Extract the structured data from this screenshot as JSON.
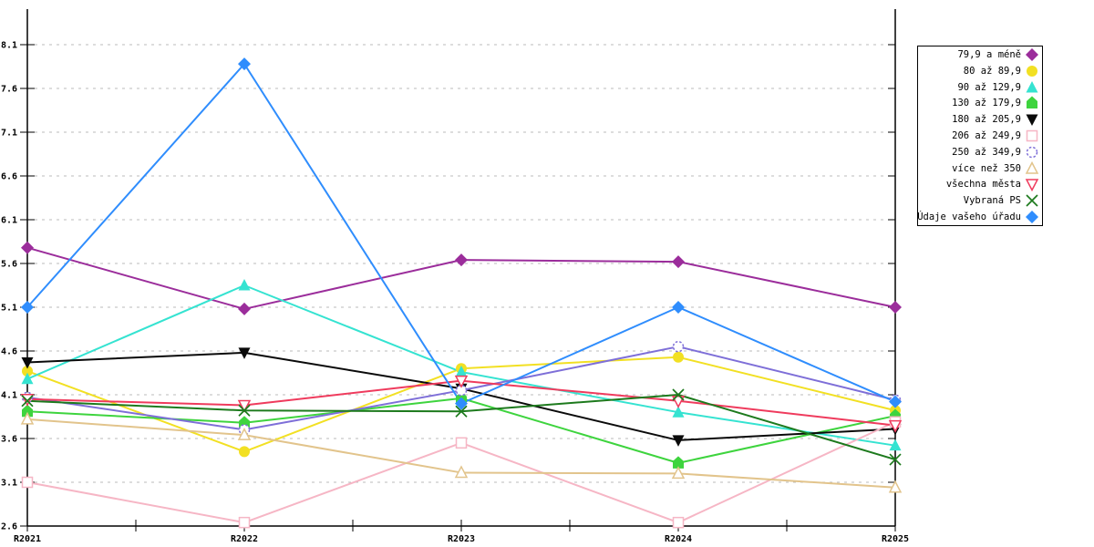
{
  "chart_data": {
    "type": "line",
    "title": "",
    "xlabel": "",
    "ylabel": "",
    "categories": [
      "R2021",
      "R2022",
      "R2023",
      "R2024",
      "R2025"
    ],
    "ylim": [
      2.6,
      8.5
    ],
    "y_ticks": [
      2.6,
      3.1,
      3.6,
      4.1,
      4.6,
      5.1,
      5.6,
      6.1,
      6.6,
      7.1,
      7.6,
      8.1
    ],
    "grid": "horizontal-dashed",
    "grid_color": "#bbbbbb",
    "axis_color": "#000000",
    "legend_position": "top-right",
    "series": [
      {
        "name": "79,9 a méně",
        "marker": "filled-diamond",
        "color": "#9b2d9b",
        "values": [
          5.78,
          5.08,
          5.64,
          5.62,
          5.1
        ]
      },
      {
        "name": "80 až 89,9",
        "marker": "filled-circle",
        "color": "#f2e023",
        "values": [
          4.37,
          3.45,
          4.4,
          4.53,
          3.92
        ]
      },
      {
        "name": "90 až 129,9",
        "marker": "filled-triangle-up",
        "color": "#35e3d1",
        "values": [
          4.28,
          5.35,
          4.36,
          3.9,
          3.52
        ]
      },
      {
        "name": "130 až 179,9",
        "marker": "filled-pentagon",
        "color": "#3ed43e",
        "values": [
          3.91,
          3.78,
          4.06,
          3.32,
          3.86
        ]
      },
      {
        "name": "180 až 205,9",
        "marker": "filled-triangle-down",
        "color": "#0a0a0a",
        "values": [
          4.47,
          4.58,
          4.17,
          3.58,
          3.71
        ]
      },
      {
        "name": "206 až 249,9",
        "marker": "open-square",
        "color": "#f6b6c5",
        "values": [
          3.1,
          2.64,
          3.55,
          2.64,
          3.79
        ]
      },
      {
        "name": "250 až 349,9",
        "marker": "open-circle-dashed",
        "color": "#7e6fd8",
        "values": [
          4.07,
          3.7,
          4.15,
          4.65,
          4.04
        ]
      },
      {
        "name": "více než 350",
        "marker": "open-triangle-up",
        "color": "#e2c48c",
        "values": [
          3.82,
          3.64,
          3.21,
          3.2,
          3.04
        ]
      },
      {
        "name": "všechna města",
        "marker": "open-triangle-down",
        "color": "#ef3b5d",
        "values": [
          4.05,
          3.98,
          4.26,
          4.03,
          3.75
        ]
      },
      {
        "name": "Vybraná PS",
        "marker": "x-cross",
        "color": "#1d7a1d",
        "values": [
          4.03,
          3.92,
          3.91,
          4.1,
          3.36
        ]
      },
      {
        "name": "Údaje vašeho úřadu",
        "marker": "filled-diamond",
        "color": "#2f8dfd",
        "values": [
          5.1,
          7.88,
          4.0,
          5.1,
          4.02
        ]
      }
    ]
  }
}
